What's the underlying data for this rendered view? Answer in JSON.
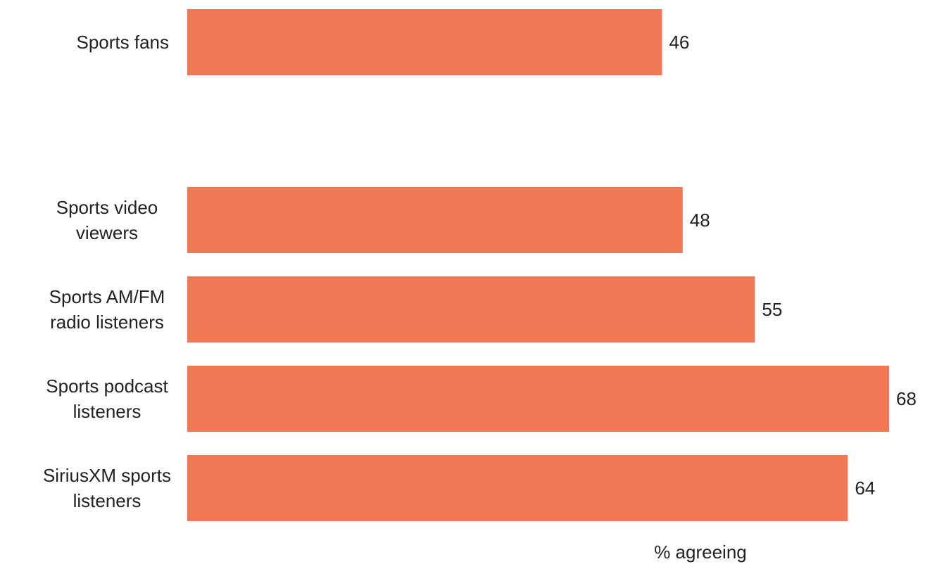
{
  "chart_data": {
    "type": "bar",
    "orientation": "horizontal",
    "categories": [
      "Sports fans",
      "Sports video viewers",
      "Sports AM/FM radio listeners",
      "Sports podcast listeners",
      "SiriusXM sports listeners"
    ],
    "category_lines": [
      [
        "Sports fans"
      ],
      [
        "Sports video",
        "viewers"
      ],
      [
        "Sports AM/FM",
        "radio listeners"
      ],
      [
        "Sports podcast",
        "listeners"
      ],
      [
        "SiriusXM sports",
        "listeners"
      ]
    ],
    "values": [
      46,
      48,
      55,
      68,
      64
    ],
    "value_labels": [
      "46",
      "48",
      "55",
      "68",
      "64"
    ],
    "xlabel": "% agreeing",
    "title": "",
    "xlim": [
      0,
      68
    ],
    "grid": false,
    "legend": "none",
    "bar_color": "#F07855",
    "text_color": "#222222"
  }
}
